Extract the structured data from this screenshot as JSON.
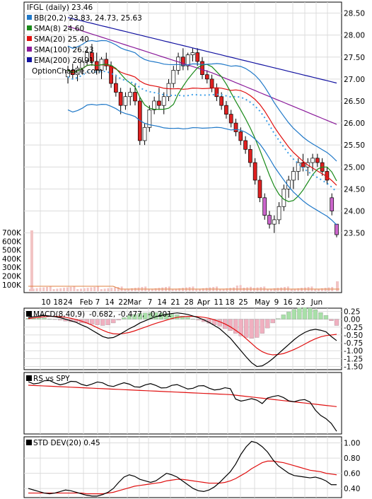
{
  "chart_data": [
    {
      "panel": "price",
      "type": "candlestick",
      "title": "IFGL (daily) 23.46",
      "watermark": "OptionChance.com",
      "y_ticks": [
        23.5,
        24.0,
        24.5,
        25.0,
        25.5,
        26.0,
        26.5,
        27.0,
        27.5,
        28.0,
        28.5
      ],
      "ylim": [
        23.3,
        28.75
      ],
      "x_labels": [
        "10",
        "18",
        "24",
        "Feb",
        "7",
        "14",
        "22",
        "Mar",
        "7",
        "14",
        "21",
        "28",
        "Apr",
        "11",
        "18",
        "25",
        "May",
        "9",
        "16",
        "23",
        "Jun"
      ],
      "legend": [
        {
          "label": "BB(20,2) 23.83, 24.73, 25.63",
          "color": "#1f78c8"
        },
        {
          "label": "SMA(8) 24.60",
          "color": "#1a8a1a"
        },
        {
          "label": "SMA(20) 25.40",
          "color": "#e01010"
        },
        {
          "label": "SMA(100) 26.23",
          "color": "#8a1a9a"
        },
        {
          "label": "EMA(200) 26.91",
          "color": "#1010a0"
        }
      ],
      "volume_ticks": [
        "700K",
        "600K",
        "500K",
        "400K",
        "300K",
        "200K",
        "100K"
      ],
      "candles": [
        [
          27.05,
          27.3,
          26.9,
          27.2
        ],
        [
          27.2,
          27.35,
          27.0,
          27.1
        ],
        [
          27.1,
          27.3,
          26.95,
          27.25
        ],
        [
          27.25,
          27.5,
          27.1,
          27.4
        ],
        [
          27.4,
          27.7,
          27.3,
          27.6
        ],
        [
          27.6,
          27.8,
          27.3,
          27.4
        ],
        [
          27.4,
          27.6,
          27.1,
          27.2
        ],
        [
          27.2,
          27.5,
          27.0,
          27.45
        ],
        [
          27.45,
          27.6,
          27.2,
          27.3
        ],
        [
          27.3,
          27.4,
          26.8,
          26.9
        ],
        [
          26.9,
          27.1,
          26.6,
          26.7
        ],
        [
          26.7,
          26.8,
          26.2,
          26.4
        ],
        [
          26.4,
          26.7,
          26.3,
          26.6
        ],
        [
          26.6,
          26.8,
          26.4,
          26.7
        ],
        [
          26.7,
          26.9,
          26.4,
          26.5
        ],
        [
          26.5,
          26.6,
          25.5,
          25.6
        ],
        [
          25.6,
          26.0,
          25.5,
          25.9
        ],
        [
          25.9,
          26.4,
          25.8,
          26.3
        ],
        [
          26.3,
          26.6,
          26.2,
          26.5
        ],
        [
          26.5,
          26.8,
          26.3,
          26.4
        ],
        [
          26.4,
          26.7,
          26.2,
          26.6
        ],
        [
          26.6,
          27.0,
          26.5,
          26.9
        ],
        [
          26.9,
          27.3,
          26.8,
          27.2
        ],
        [
          27.2,
          27.6,
          27.1,
          27.5
        ],
        [
          27.5,
          27.7,
          27.2,
          27.3
        ],
        [
          27.3,
          27.6,
          27.2,
          27.55
        ],
        [
          27.55,
          27.7,
          27.4,
          27.6
        ],
        [
          27.6,
          27.7,
          27.3,
          27.4
        ],
        [
          27.4,
          27.5,
          27.0,
          27.1
        ],
        [
          27.1,
          27.2,
          26.9,
          27.0
        ],
        [
          27.0,
          27.1,
          26.7,
          26.8
        ],
        [
          26.8,
          26.9,
          26.5,
          26.6
        ],
        [
          26.6,
          26.7,
          26.3,
          26.4
        ],
        [
          26.4,
          26.5,
          26.1,
          26.2
        ],
        [
          26.2,
          26.3,
          25.9,
          26.0
        ],
        [
          26.0,
          26.1,
          25.7,
          25.8
        ],
        [
          25.8,
          25.9,
          25.5,
          25.6
        ],
        [
          25.6,
          25.7,
          25.3,
          25.4
        ],
        [
          25.4,
          25.5,
          25.0,
          25.1
        ],
        [
          25.1,
          25.2,
          24.6,
          24.7
        ],
        [
          24.7,
          24.8,
          24.2,
          24.3
        ],
        [
          24.3,
          24.4,
          23.8,
          23.9
        ],
        [
          23.9,
          24.0,
          23.6,
          23.7
        ],
        [
          23.7,
          23.9,
          23.5,
          23.8
        ],
        [
          23.8,
          24.2,
          23.7,
          24.1
        ],
        [
          24.1,
          24.6,
          24.0,
          24.5
        ],
        [
          24.5,
          24.8,
          24.3,
          24.7
        ],
        [
          24.7,
          25.0,
          24.5,
          24.9
        ],
        [
          24.9,
          25.2,
          24.7,
          25.1
        ],
        [
          25.1,
          25.3,
          24.9,
          25.0
        ],
        [
          25.0,
          25.2,
          24.8,
          25.1
        ],
        [
          25.1,
          25.3,
          24.9,
          25.2
        ],
        [
          25.2,
          25.3,
          25.0,
          25.1
        ],
        [
          25.1,
          25.2,
          24.8,
          24.9
        ],
        [
          24.9,
          25.0,
          24.6,
          24.7
        ],
        [
          24.3,
          24.4,
          23.9,
          24.0
        ],
        [
          23.7,
          23.7,
          23.4,
          23.46
        ]
      ]
    },
    {
      "panel": "macd",
      "type": "line",
      "title": "MACD(8,40,9)",
      "values": {
        "macd": "-0.682,",
        "signal": "-0.477,",
        "hist": "-0.201"
      },
      "colors": {
        "macd": "#000000",
        "signal": "#e01010",
        "hist": "#1a4fd0"
      },
      "y_ticks": [
        "0.25",
        "0.00",
        "-0.25",
        "-0.50",
        "-0.75",
        "-1.00",
        "-1.25",
        "-1.50"
      ],
      "ylim": [
        -1.6,
        0.35
      ],
      "macd": [
        0.05,
        0.08,
        0.1,
        0.12,
        0.1,
        0.08,
        0.05,
        0.0,
        -0.05,
        -0.1,
        -0.18,
        -0.25,
        -0.35,
        -0.45,
        -0.55,
        -0.6,
        -0.58,
        -0.5,
        -0.4,
        -0.3,
        -0.22,
        -0.12,
        -0.05,
        0.02,
        0.08,
        0.12,
        0.15,
        0.18,
        0.2,
        0.18,
        0.15,
        0.1,
        0.05,
        -0.02,
        -0.1,
        -0.2,
        -0.3,
        -0.45,
        -0.6,
        -0.8,
        -1.0,
        -1.2,
        -1.38,
        -1.5,
        -1.48,
        -1.38,
        -1.25,
        -1.1,
        -0.95,
        -0.8,
        -0.65,
        -0.52,
        -0.42,
        -0.35,
        -0.32,
        -0.35,
        -0.4,
        -0.55,
        -0.68
      ],
      "signal": [
        0.02,
        0.04,
        0.06,
        0.08,
        0.09,
        0.09,
        0.08,
        0.06,
        0.03,
        -0.01,
        -0.06,
        -0.12,
        -0.19,
        -0.27,
        -0.35,
        -0.42,
        -0.46,
        -0.47,
        -0.45,
        -0.42,
        -0.37,
        -0.31,
        -0.25,
        -0.19,
        -0.13,
        -0.08,
        -0.03,
        0.02,
        0.06,
        0.08,
        0.09,
        0.09,
        0.08,
        0.06,
        0.03,
        -0.02,
        -0.08,
        -0.15,
        -0.24,
        -0.35,
        -0.47,
        -0.62,
        -0.77,
        -0.92,
        -1.03,
        -1.1,
        -1.13,
        -1.12,
        -1.09,
        -1.03,
        -0.96,
        -0.88,
        -0.79,
        -0.7,
        -0.62,
        -0.56,
        -0.52,
        -0.5,
        -0.48
      ]
    },
    {
      "panel": "rs",
      "type": "line",
      "title": "RS vs SPY"
    },
    {
      "panel": "stddev",
      "type": "line",
      "title": "STD DEV(20) 0.45",
      "y_ticks": [
        "1.00",
        "0.80",
        "0.60",
        "0.40"
      ],
      "ylim": [
        0.28,
        1.08
      ],
      "std": [
        0.4,
        0.38,
        0.36,
        0.34,
        0.33,
        0.34,
        0.36,
        0.38,
        0.37,
        0.35,
        0.33,
        0.31,
        0.3,
        0.3,
        0.32,
        0.35,
        0.4,
        0.48,
        0.55,
        0.58,
        0.56,
        0.52,
        0.5,
        0.48,
        0.5,
        0.55,
        0.6,
        0.58,
        0.55,
        0.5,
        0.45,
        0.4,
        0.37,
        0.36,
        0.38,
        0.42,
        0.48,
        0.55,
        0.62,
        0.72,
        0.85,
        0.95,
        1.02,
        1.0,
        0.95,
        0.88,
        0.78,
        0.7,
        0.65,
        0.6,
        0.57,
        0.56,
        0.55,
        0.54,
        0.55,
        0.53,
        0.5,
        0.45,
        0.45
      ],
      "avg": [
        0.34,
        0.34,
        0.34,
        0.34,
        0.34,
        0.34,
        0.34,
        0.34,
        0.34,
        0.34,
        0.34,
        0.33,
        0.33,
        0.33,
        0.33,
        0.34,
        0.35,
        0.37,
        0.39,
        0.41,
        0.43,
        0.44,
        0.45,
        0.46,
        0.47,
        0.48,
        0.5,
        0.51,
        0.52,
        0.52,
        0.51,
        0.5,
        0.49,
        0.48,
        0.47,
        0.47,
        0.47,
        0.48,
        0.5,
        0.53,
        0.57,
        0.61,
        0.66,
        0.7,
        0.74,
        0.76,
        0.76,
        0.75,
        0.74,
        0.72,
        0.7,
        0.68,
        0.66,
        0.64,
        0.63,
        0.62,
        0.6,
        0.59,
        0.58
      ]
    }
  ]
}
